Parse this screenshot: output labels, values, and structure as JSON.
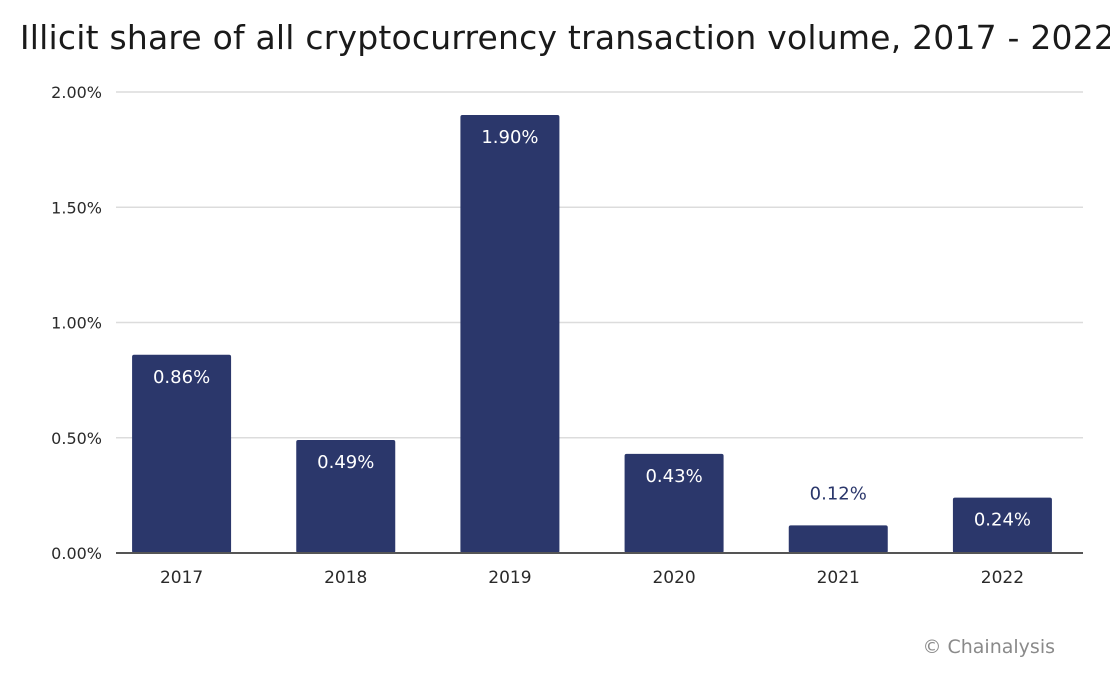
{
  "chart_data": {
    "type": "bar",
    "title": "Illicit share of all cryptocurrency transaction volume, 2017 - 2022",
    "categories": [
      "2017",
      "2018",
      "2019",
      "2020",
      "2021",
      "2022"
    ],
    "values": [
      0.86,
      0.49,
      1.9,
      0.43,
      0.12,
      0.24
    ],
    "data_labels": [
      "0.86%",
      "0.49%",
      "1.90%",
      "0.43%",
      "0.12%",
      "0.24%"
    ],
    "ylim": [
      0,
      2.0
    ],
    "yticks": [
      0,
      0.5,
      1.0,
      1.5,
      2.0
    ],
    "ytick_labels": [
      "0.00%",
      "0.50%",
      "1.00%",
      "1.50%",
      "2.00%"
    ],
    "xlabel": "",
    "ylabel": "",
    "grid": true,
    "legend": "none",
    "colors": {
      "bar": "#2b376b",
      "label_inside": "#ffffff",
      "label_outside": "#2b376b",
      "grid": "#dcdcdc",
      "axis": "#555555",
      "tick_text": "#2a2a2a"
    }
  },
  "footer": {
    "credit": "© Chainalysis"
  }
}
